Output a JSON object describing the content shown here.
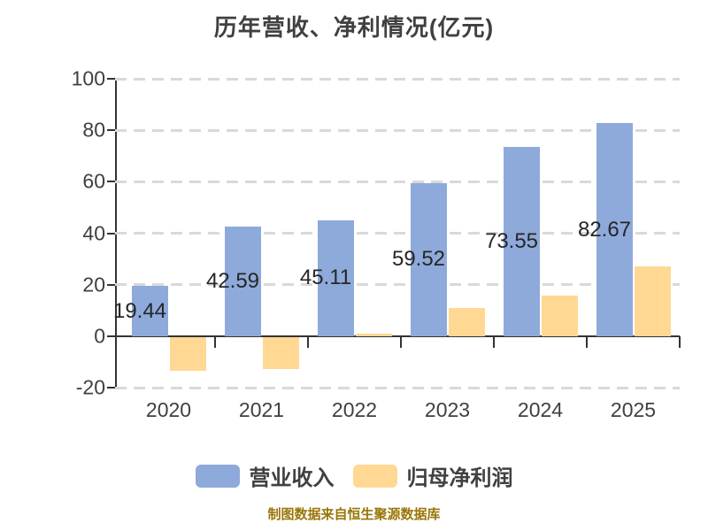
{
  "footer": {
    "source_note": "制图数据来自恒生聚源数据库"
  },
  "chart_data": {
    "type": "bar",
    "title": "历年营收、净利情况(亿元)",
    "categories": [
      "2020",
      "2021",
      "2022",
      "2023",
      "2024",
      "2025"
    ],
    "series": [
      {
        "name": "营业收入",
        "color": "#8EAADB",
        "values": [
          19.44,
          42.59,
          45.11,
          59.52,
          73.55,
          82.67
        ],
        "labels": [
          "19.44",
          "42.59",
          "45.11",
          "59.52",
          "73.55",
          "82.67"
        ]
      },
      {
        "name": "归母净利润",
        "color": "#FFD894",
        "values": [
          -13.0,
          -12.4,
          1.0,
          10.9,
          15.7,
          27.2
        ],
        "labels": null
      }
    ],
    "ylim": [
      -20,
      100
    ],
    "yticks": [
      100,
      80,
      60,
      40,
      20,
      0,
      -20
    ],
    "xlabel": "",
    "ylabel": "",
    "grid": "dashed-horizontal",
    "legend_position": "bottom",
    "colors": {
      "title_text": "#404040",
      "axis_text": "#404040",
      "axis_line": "#333333",
      "gridline": "#D9D9D9",
      "value_label_text": "#262626",
      "source_note_text": "#9A7609",
      "background": "#FFFFFF"
    }
  }
}
